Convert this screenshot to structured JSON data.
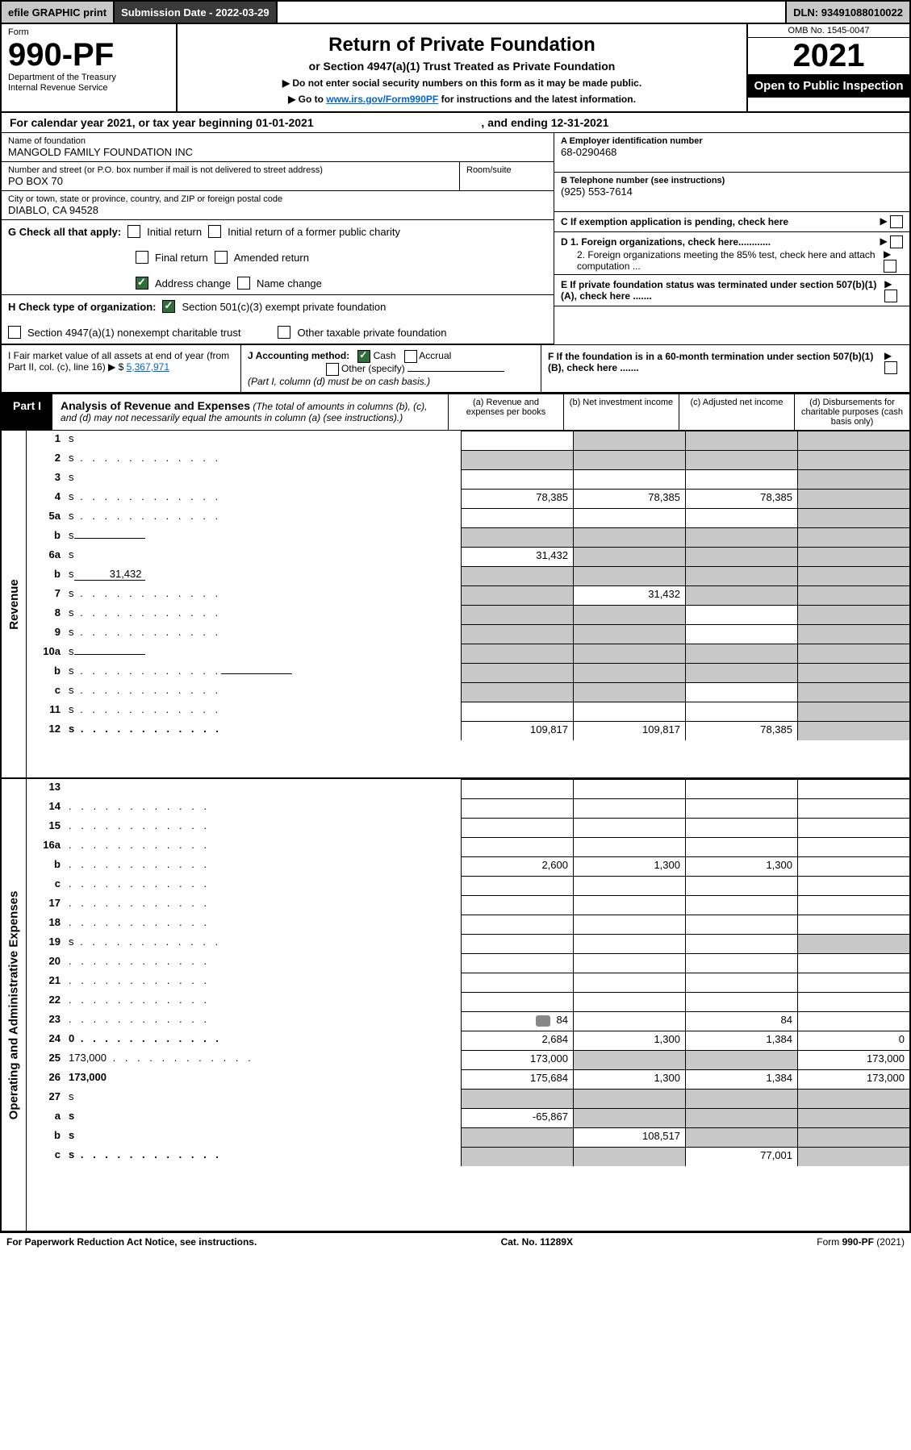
{
  "top_bar": {
    "efile": "efile GRAPHIC print",
    "sub_lbl": "Submission Date -",
    "sub_date": "2022-03-29",
    "dln_lbl": "DLN:",
    "dln": "93491088010022"
  },
  "header": {
    "form_lbl": "Form",
    "form_no": "990-PF",
    "dept1": "Department of the Treasury",
    "dept2": "Internal Revenue Service",
    "title": "Return of Private Foundation",
    "subtitle": "or Section 4947(a)(1) Trust Treated as Private Foundation",
    "instr1": "▶ Do not enter social security numbers on this form as it may be made public.",
    "instr2_pre": "▶ Go to ",
    "instr2_link": "www.irs.gov/Form990PF",
    "instr2_post": " for instructions and the latest information.",
    "omb": "OMB No. 1545-0047",
    "year": "2021",
    "open": "Open to Public Inspection"
  },
  "calendar": {
    "pre": "For calendar year 2021, or tax year beginning ",
    "begin": "01-01-2021",
    "mid": " , and ending ",
    "end": "12-31-2021"
  },
  "name_block": {
    "lbl": "Name of foundation",
    "val": "MANGOLD FAMILY FOUNDATION INC"
  },
  "addr_block": {
    "lbl": "Number and street (or P.O. box number if mail is not delivered to street address)",
    "val": "PO BOX 70",
    "room_lbl": "Room/suite"
  },
  "city_block": {
    "lbl": "City or town, state or province, country, and ZIP or foreign postal code",
    "val": "DIABLO, CA  94528"
  },
  "right_info": {
    "a_lbl": "A Employer identification number",
    "a_val": "68-0290468",
    "b_lbl": "B Telephone number (see instructions)",
    "b_val": "(925) 553-7614",
    "c_lbl": "C If exemption application is pending, check here",
    "d1": "D 1. Foreign organizations, check here............",
    "d2": "2. Foreign organizations meeting the 85% test, check here and attach computation ...",
    "e": "E  If private foundation status was terminated under section 507(b)(1)(A), check here .......",
    "f": "F  If the foundation is in a 60-month termination under section 507(b)(1)(B), check here ......."
  },
  "g_check": {
    "lbl": "G Check all that apply:",
    "initial": "Initial return",
    "initial_pub": "Initial return of a former public charity",
    "final": "Final return",
    "amended": "Amended return",
    "addr_chg": "Address change",
    "name_chg": "Name change"
  },
  "h_check": {
    "lbl": "H Check type of organization:",
    "s501": "Section 501(c)(3) exempt private foundation",
    "s4947": "Section 4947(a)(1) nonexempt charitable trust",
    "other_tax": "Other taxable private foundation"
  },
  "i_block": {
    "lbl": "I Fair market value of all assets at end of year (from Part II, col. (c), line 16) ▶ $",
    "val": "5,367,971"
  },
  "j_block": {
    "lbl": "J Accounting method:",
    "cash": "Cash",
    "accrual": "Accrual",
    "other": "Other (specify)",
    "note": "(Part I, column (d) must be on cash basis.)"
  },
  "part1": {
    "tab": "Part I",
    "title": "Analysis of Revenue and Expenses",
    "note": "(The total of amounts in columns (b), (c), and (d) may not necessarily equal the amounts in column (a) (see instructions).)",
    "cols": {
      "a": "(a)  Revenue and expenses per books",
      "b": "(b)  Net investment income",
      "c": "(c)  Adjusted net income",
      "d": "(d)  Disbursements for charitable purposes (cash basis only)"
    },
    "side_rev": "Revenue",
    "side_exp": "Operating and Administrative Expenses"
  },
  "rows": [
    {
      "n": "1",
      "d": "s",
      "a": "",
      "b": "s",
      "c": "s"
    },
    {
      "n": "2",
      "d": "s",
      "a": "s",
      "b": "s",
      "c": "s",
      "dots": 1
    },
    {
      "n": "3",
      "d": "s",
      "a": "",
      "b": "",
      "c": ""
    },
    {
      "n": "4",
      "d": "s",
      "a": "78,385",
      "b": "78,385",
      "c": "78,385",
      "dots": 1
    },
    {
      "n": "5a",
      "d": "s",
      "a": "",
      "b": "",
      "c": "",
      "dots": 1
    },
    {
      "n": "b",
      "d": "s",
      "a": "s",
      "b": "s",
      "c": "s",
      "sub": ""
    },
    {
      "n": "6a",
      "d": "s",
      "a": "31,432",
      "b": "s",
      "c": "s"
    },
    {
      "n": "b",
      "d": "s",
      "a": "s",
      "b": "s",
      "c": "s",
      "sub": "31,432"
    },
    {
      "n": "7",
      "d": "s",
      "a": "s",
      "b": "31,432",
      "c": "s",
      "dots": 1
    },
    {
      "n": "8",
      "d": "s",
      "a": "s",
      "b": "s",
      "c": "",
      "dots": 1
    },
    {
      "n": "9",
      "d": "s",
      "a": "s",
      "b": "s",
      "c": "",
      "dots": 1
    },
    {
      "n": "10a",
      "d": "s",
      "a": "s",
      "b": "s",
      "c": "s",
      "sub": ""
    },
    {
      "n": "b",
      "d": "s",
      "a": "s",
      "b": "s",
      "c": "s",
      "sub": "",
      "dots": 1
    },
    {
      "n": "c",
      "d": "s",
      "a": "s",
      "b": "s",
      "c": "",
      "dots": 1
    },
    {
      "n": "11",
      "d": "s",
      "a": "",
      "b": "",
      "c": "",
      "dots": 1
    },
    {
      "n": "12",
      "d": "s",
      "a": "109,817",
      "b": "109,817",
      "c": "78,385",
      "bold": 1,
      "dots": 1
    }
  ],
  "exp_rows": [
    {
      "n": "13",
      "d": "",
      "a": "",
      "b": "",
      "c": ""
    },
    {
      "n": "14",
      "d": "",
      "a": "",
      "b": "",
      "c": "",
      "dots": 1
    },
    {
      "n": "15",
      "d": "",
      "a": "",
      "b": "",
      "c": "",
      "dots": 1
    },
    {
      "n": "16a",
      "d": "",
      "a": "",
      "b": "",
      "c": "",
      "dots": 1
    },
    {
      "n": "b",
      "d": "",
      "a": "2,600",
      "b": "1,300",
      "c": "1,300",
      "dots": 1
    },
    {
      "n": "c",
      "d": "",
      "a": "",
      "b": "",
      "c": "",
      "dots": 1
    },
    {
      "n": "17",
      "d": "",
      "a": "",
      "b": "",
      "c": "",
      "dots": 1
    },
    {
      "n": "18",
      "d": "",
      "a": "",
      "b": "",
      "c": "",
      "dots": 1
    },
    {
      "n": "19",
      "d": "s",
      "a": "",
      "b": "",
      "c": "",
      "dots": 1
    },
    {
      "n": "20",
      "d": "",
      "a": "",
      "b": "",
      "c": "",
      "dots": 1
    },
    {
      "n": "21",
      "d": "",
      "a": "",
      "b": "",
      "c": "",
      "dots": 1
    },
    {
      "n": "22",
      "d": "",
      "a": "",
      "b": "",
      "c": "",
      "dots": 1
    },
    {
      "n": "23",
      "d": "",
      "a": "84",
      "b": "",
      "c": "84",
      "icon": 1,
      "dots": 1
    },
    {
      "n": "24",
      "d": "0",
      "a": "2,684",
      "b": "1,300",
      "c": "1,384",
      "bold": 1,
      "dots": 1
    },
    {
      "n": "25",
      "d": "173,000",
      "a": "173,000",
      "b": "s",
      "c": "s",
      "dots": 1
    },
    {
      "n": "26",
      "d": "173,000",
      "a": "175,684",
      "b": "1,300",
      "c": "1,384",
      "bold": 1
    },
    {
      "n": "27",
      "d": "s",
      "a": "s",
      "b": "s",
      "c": "s"
    },
    {
      "n": "a",
      "d": "s",
      "a": "-65,867",
      "b": "s",
      "c": "s",
      "bold": 1
    },
    {
      "n": "b",
      "d": "s",
      "a": "s",
      "b": "108,517",
      "c": "s",
      "bold": 1
    },
    {
      "n": "c",
      "d": "s",
      "a": "s",
      "b": "s",
      "c": "77,001",
      "bold": 1,
      "dots": 1
    }
  ],
  "footer": {
    "left": "For Paperwork Reduction Act Notice, see instructions.",
    "mid": "Cat. No. 11289X",
    "right": "Form 990-PF (2021)"
  }
}
